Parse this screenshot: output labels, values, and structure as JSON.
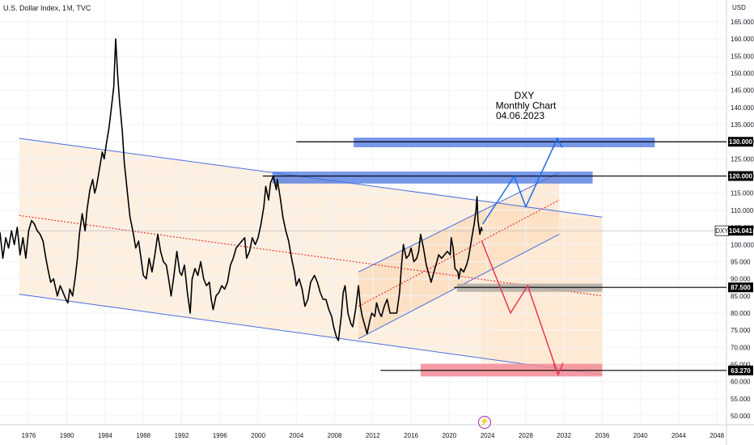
{
  "header": {
    "symbol_info": "U.S. Dollar Index, 1M, TVC"
  },
  "chart_data": {
    "type": "line",
    "title": "U.S. Dollar Index, 1M, TVC",
    "currency": "USD",
    "series": [
      {
        "name": "DXY",
        "color": "#000000",
        "points": [
          [
            1973.0,
            103.5
          ],
          [
            1973.3,
            96
          ],
          [
            1973.6,
            102
          ],
          [
            1973.9,
            99
          ],
          [
            1974.2,
            104
          ],
          [
            1974.5,
            100
          ],
          [
            1974.8,
            105
          ],
          [
            1975.1,
            97
          ],
          [
            1975.4,
            102
          ],
          [
            1975.7,
            96
          ],
          [
            1976.0,
            104
          ],
          [
            1976.3,
            107
          ],
          [
            1976.6,
            106
          ],
          [
            1976.9,
            104
          ],
          [
            1977.2,
            103
          ],
          [
            1977.5,
            101
          ],
          [
            1977.8,
            96
          ],
          [
            1978.0,
            93
          ],
          [
            1978.3,
            89
          ],
          [
            1978.6,
            90
          ],
          [
            1978.8,
            87.5
          ],
          [
            1979.0,
            85
          ],
          [
            1979.3,
            88
          ],
          [
            1979.6,
            86
          ],
          [
            1979.9,
            84
          ],
          [
            1980.1,
            83
          ],
          [
            1980.3,
            87
          ],
          [
            1980.6,
            85
          ],
          [
            1980.9,
            91
          ],
          [
            1981.1,
            96
          ],
          [
            1981.3,
            103
          ],
          [
            1981.6,
            109
          ],
          [
            1981.9,
            104
          ],
          [
            1982.1,
            110
          ],
          [
            1982.4,
            116
          ],
          [
            1982.7,
            119
          ],
          [
            1982.9,
            115
          ],
          [
            1983.1,
            117
          ],
          [
            1983.4,
            122
          ],
          [
            1983.7,
            127
          ],
          [
            1983.9,
            125
          ],
          [
            1984.1,
            129
          ],
          [
            1984.4,
            134
          ],
          [
            1984.7,
            141
          ],
          [
            1984.9,
            146
          ],
          [
            1985.1,
            160
          ],
          [
            1985.3,
            150
          ],
          [
            1985.5,
            142
          ],
          [
            1985.8,
            133
          ],
          [
            1986.0,
            124
          ],
          [
            1986.3,
            116
          ],
          [
            1986.6,
            108
          ],
          [
            1986.9,
            104
          ],
          [
            1987.2,
            99
          ],
          [
            1987.5,
            101
          ],
          [
            1987.8,
            95
          ],
          [
            1988.0,
            91
          ],
          [
            1988.3,
            90
          ],
          [
            1988.6,
            96
          ],
          [
            1988.9,
            92
          ],
          [
            1989.2,
            97
          ],
          [
            1989.5,
            103
          ],
          [
            1989.8,
            98
          ],
          [
            1990.1,
            95
          ],
          [
            1990.4,
            94
          ],
          [
            1990.7,
            89
          ],
          [
            1990.9,
            85
          ],
          [
            1991.2,
            91
          ],
          [
            1991.5,
            98
          ],
          [
            1991.8,
            92
          ],
          [
            1992.0,
            91
          ],
          [
            1992.3,
            94
          ],
          [
            1992.6,
            86
          ],
          [
            1992.9,
            80
          ],
          [
            1993.1,
            90
          ],
          [
            1993.4,
            93
          ],
          [
            1993.7,
            91
          ],
          [
            1994.0,
            95
          ],
          [
            1994.3,
            90
          ],
          [
            1994.6,
            88
          ],
          [
            1994.9,
            89
          ],
          [
            1995.1,
            84
          ],
          [
            1995.3,
            81
          ],
          [
            1995.6,
            85
          ],
          [
            1995.9,
            86
          ],
          [
            1996.2,
            88
          ],
          [
            1996.5,
            87
          ],
          [
            1996.8,
            89
          ],
          [
            1997.1,
            94
          ],
          [
            1997.4,
            96
          ],
          [
            1997.7,
            99
          ],
          [
            1998.0,
            100
          ],
          [
            1998.3,
            101
          ],
          [
            1998.6,
            102
          ],
          [
            1998.8,
            96
          ],
          [
            1999.1,
            98
          ],
          [
            1999.4,
            102
          ],
          [
            1999.7,
            100
          ],
          [
            2000.0,
            102
          ],
          [
            2000.3,
            106
          ],
          [
            2000.6,
            111
          ],
          [
            2000.8,
            117
          ],
          [
            2001.1,
            113
          ],
          [
            2001.3,
            118
          ],
          [
            2001.6,
            120
          ],
          [
            2001.9,
            116
          ],
          [
            2002.0,
            119
          ],
          [
            2002.3,
            114
          ],
          [
            2002.6,
            108
          ],
          [
            2002.9,
            104
          ],
          [
            2003.2,
            101
          ],
          [
            2003.5,
            96
          ],
          [
            2003.8,
            92
          ],
          [
            2004.0,
            88
          ],
          [
            2004.3,
            90
          ],
          [
            2004.6,
            87
          ],
          [
            2004.9,
            82
          ],
          [
            2005.2,
            84
          ],
          [
            2005.5,
            89
          ],
          [
            2005.9,
            91
          ],
          [
            2006.2,
            89
          ],
          [
            2006.5,
            86
          ],
          [
            2006.8,
            84
          ],
          [
            2007.1,
            84
          ],
          [
            2007.4,
            81
          ],
          [
            2007.7,
            79
          ],
          [
            2007.9,
            76
          ],
          [
            2008.2,
            73
          ],
          [
            2008.4,
            72
          ],
          [
            2008.7,
            79
          ],
          [
            2008.9,
            86
          ],
          [
            2009.1,
            88
          ],
          [
            2009.4,
            80
          ],
          [
            2009.7,
            77
          ],
          [
            2009.9,
            76
          ],
          [
            2010.2,
            81
          ],
          [
            2010.5,
            88
          ],
          [
            2010.7,
            82
          ],
          [
            2010.9,
            79
          ],
          [
            2011.2,
            76
          ],
          [
            2011.4,
            74
          ],
          [
            2011.7,
            78
          ],
          [
            2011.9,
            80
          ],
          [
            2012.2,
            79
          ],
          [
            2012.4,
            83
          ],
          [
            2012.7,
            80
          ],
          [
            2012.9,
            79
          ],
          [
            2013.2,
            82
          ],
          [
            2013.5,
            84
          ],
          [
            2013.8,
            80
          ],
          [
            2014.0,
            80
          ],
          [
            2014.3,
            80
          ],
          [
            2014.5,
            80
          ],
          [
            2014.8,
            86
          ],
          [
            2015.0,
            94
          ],
          [
            2015.2,
            100
          ],
          [
            2015.5,
            96
          ],
          [
            2015.8,
            97
          ],
          [
            2016.0,
            99
          ],
          [
            2016.3,
            95
          ],
          [
            2016.6,
            96
          ],
          [
            2016.8,
            98
          ],
          [
            2017.0,
            103
          ],
          [
            2017.3,
            99
          ],
          [
            2017.6,
            94
          ],
          [
            2017.8,
            92
          ],
          [
            2018.1,
            89
          ],
          [
            2018.4,
            92
          ],
          [
            2018.7,
            95
          ],
          [
            2018.9,
            97
          ],
          [
            2019.2,
            96
          ],
          [
            2019.5,
            97
          ],
          [
            2019.8,
            98
          ],
          [
            2020.1,
            97
          ],
          [
            2020.2,
            102
          ],
          [
            2020.4,
            99
          ],
          [
            2020.6,
            93
          ],
          [
            2020.9,
            92
          ],
          [
            2021.0,
            90
          ],
          [
            2021.2,
            93
          ],
          [
            2021.5,
            92
          ],
          [
            2021.8,
            94
          ],
          [
            2022.0,
            96
          ],
          [
            2022.3,
            101
          ],
          [
            2022.6,
            106
          ],
          [
            2022.8,
            110
          ],
          [
            2022.9,
            114
          ],
          [
            2023.0,
            107
          ],
          [
            2023.2,
            103
          ],
          [
            2023.35,
            105
          ],
          [
            2023.45,
            104.0
          ]
        ]
      }
    ],
    "xlim": [
      1973,
      2049
    ],
    "ylim": [
      47,
      170
    ],
    "x_ticks": [
      "1976",
      "1980",
      "1984",
      "1988",
      "1992",
      "1996",
      "2000",
      "2004",
      "2008",
      "2012",
      "2016",
      "2020",
      "2024",
      "2028",
      "2032",
      "2036",
      "2040",
      "2044",
      "2048"
    ],
    "x_tick_values": [
      1976,
      1980,
      1984,
      1988,
      1992,
      1996,
      2000,
      2004,
      2008,
      2012,
      2016,
      2020,
      2024,
      2028,
      2032,
      2036,
      2040,
      2044,
      2048
    ],
    "y_ticks": [
      "165.000",
      "160.000",
      "155.000",
      "150.000",
      "145.000",
      "140.000",
      "135.000",
      "130.000",
      "125.000",
      "120.000",
      "115.000",
      "110.000",
      "105.000",
      "100.000",
      "95.000",
      "90.000",
      "85.000",
      "80.000",
      "75.000",
      "70.000",
      "65.000",
      "60.000",
      "55.000",
      "50.000"
    ],
    "y_tick_values": [
      165,
      160,
      155,
      150,
      145,
      140,
      135,
      130,
      125,
      120,
      115,
      110,
      105,
      100,
      95,
      90,
      85,
      80,
      75,
      70,
      65,
      60,
      55,
      50
    ],
    "price_badges": [
      {
        "label": "130.000",
        "value": 130
      },
      {
        "label": "120.000",
        "value": 120
      },
      {
        "label": "104.041",
        "value": 104.041,
        "tag": "DXY"
      },
      {
        "label": "87.500",
        "value": 87.5
      },
      {
        "label": "63.270",
        "value": 63.27
      }
    ],
    "annotation": {
      "lines": [
        "DXY",
        "Monthly Chart",
        "04.06.2023"
      ]
    },
    "colors": {
      "channel_line": "#4a6ee0",
      "channel_fill": "#fde3c7",
      "midline": "#e53935",
      "blue_zone": "#4a74e0",
      "red_zone": "#f28b96",
      "gray_zone": "#b0aca8",
      "up_arrow": "#1e6fe8",
      "down_arrow": "#e8364f",
      "price": "#000000",
      "badge": "#000000",
      "lightning": "#9c27b0"
    }
  }
}
